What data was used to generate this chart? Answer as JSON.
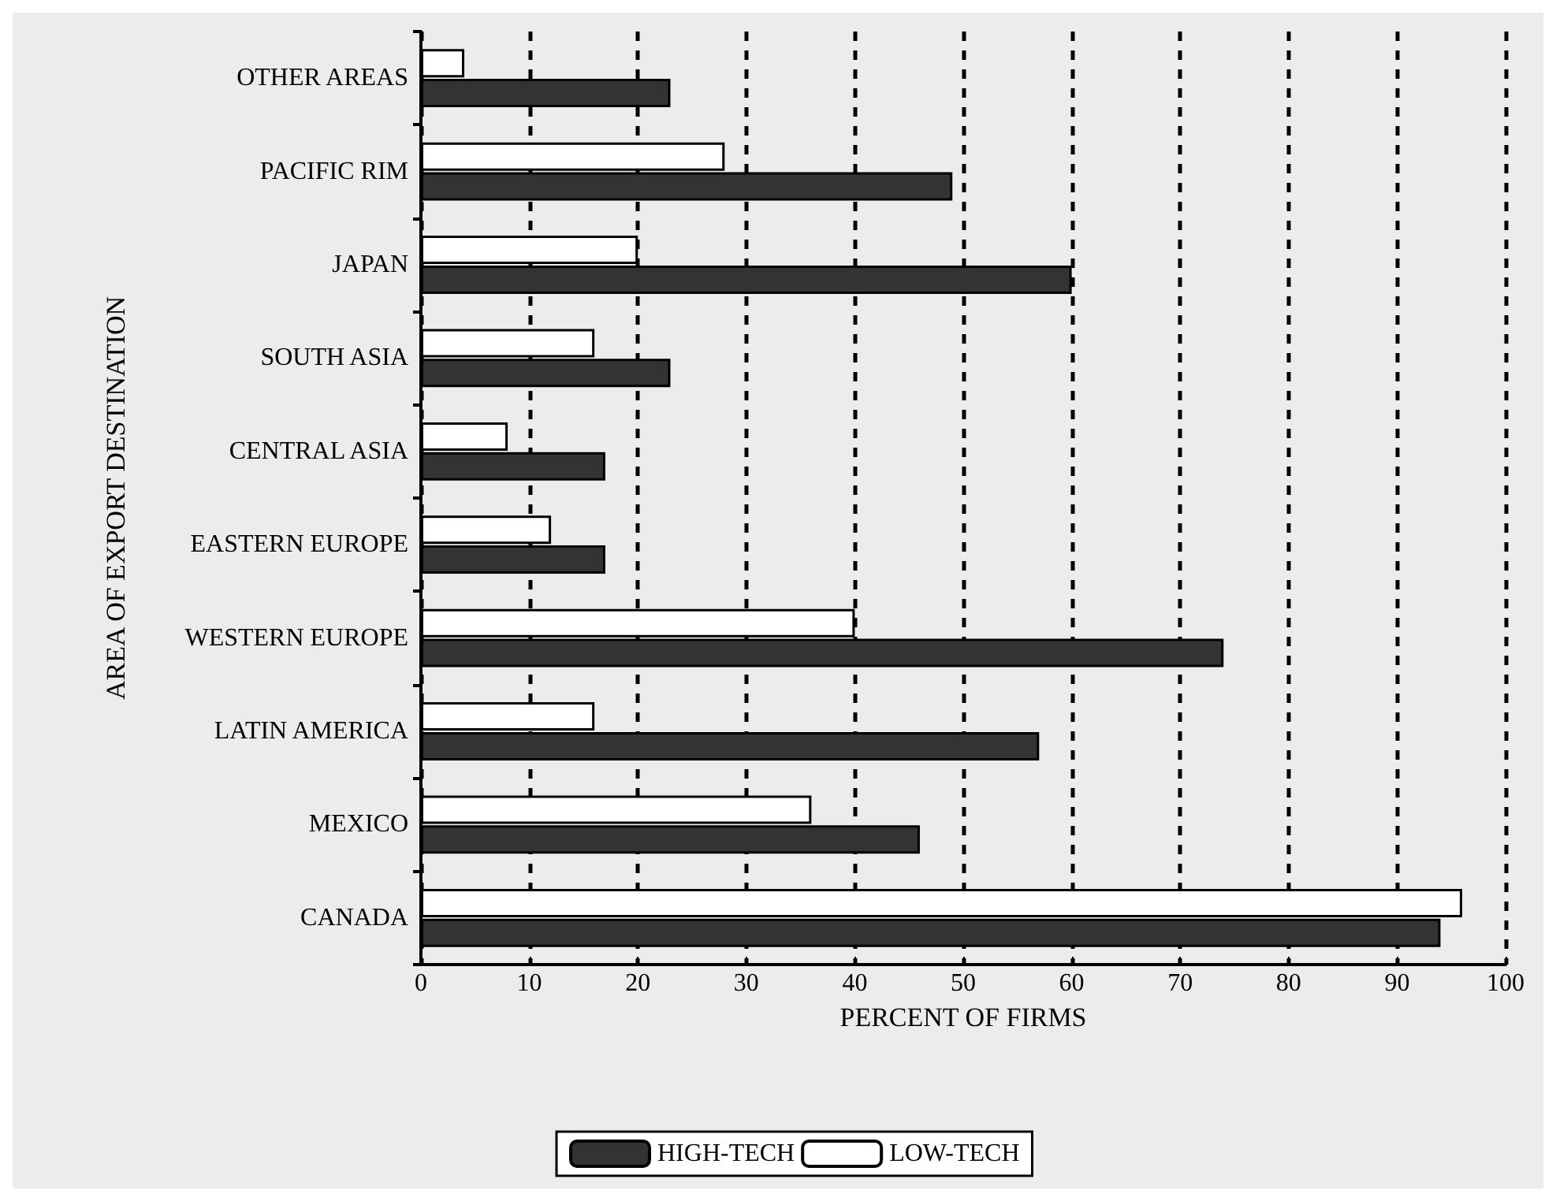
{
  "chart_data": {
    "type": "bar",
    "orientation": "horizontal",
    "xlabel": "PERCENT OF FIRMS",
    "ylabel": "AREA OF EXPORT DESTINATION",
    "categories": [
      "OTHER AREAS",
      "PACIFIC RIM",
      "JAPAN",
      "SOUTH ASIA",
      "CENTRAL ASIA",
      "EASTERN EUROPE",
      "WESTERN EUROPE",
      "LATIN AMERICA",
      "MEXICO",
      "CANADA"
    ],
    "series": [
      {
        "name": "HIGH-TECH",
        "color": "#333333",
        "values": [
          23,
          49,
          60,
          23,
          17,
          17,
          74,
          57,
          46,
          94
        ]
      },
      {
        "name": "LOW-TECH",
        "color": "#ffffff",
        "values": [
          4,
          28,
          20,
          16,
          8,
          12,
          40,
          16,
          36,
          96
        ]
      }
    ],
    "xlim": [
      0,
      100
    ],
    "xticks": [
      0,
      10,
      20,
      30,
      40,
      50,
      60,
      70,
      80,
      90,
      100
    ],
    "grid": "x",
    "legend": "bottom"
  }
}
